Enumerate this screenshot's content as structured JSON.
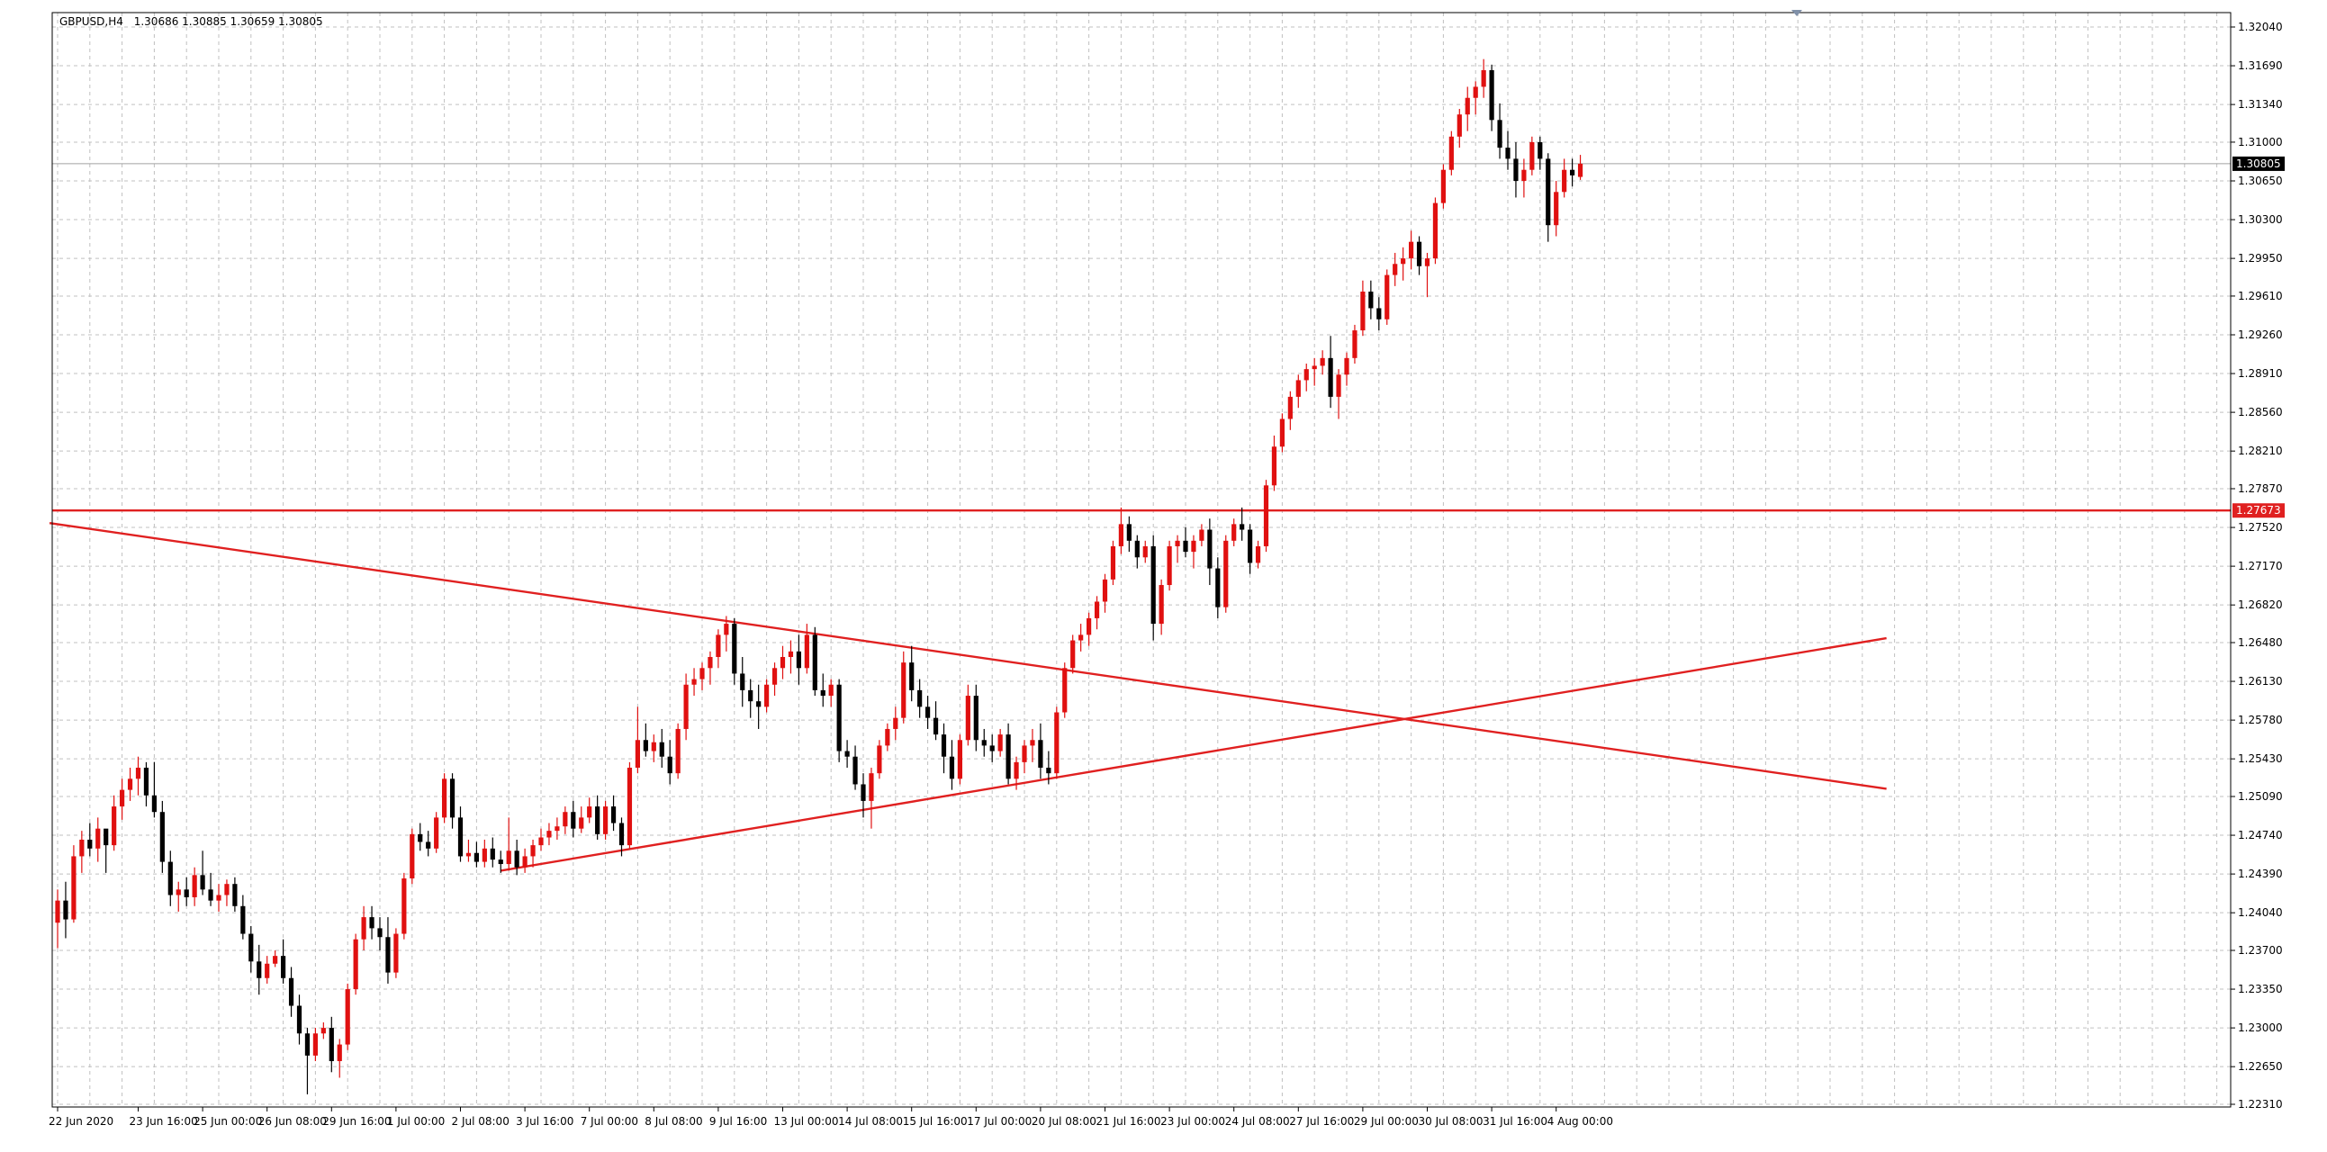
{
  "header": {
    "symbol_timeframe": "GBPUSD,H4",
    "ohlc": "1.30686 1.30885 1.30659 1.30805"
  },
  "chart_data": {
    "type": "candlestick",
    "title": "GBPUSD,H4 1.30686 1.30885 1.30659 1.30805",
    "ylim": [
      1.2231,
      1.3204
    ],
    "y_ticks": [
      "1.32040",
      "1.31690",
      "1.31340",
      "1.31000",
      "1.30650",
      "1.30300",
      "1.29950",
      "1.29610",
      "1.29260",
      "1.28910",
      "1.28560",
      "1.28210",
      "1.27870",
      "1.27520",
      "1.27170",
      "1.26820",
      "1.26480",
      "1.26130",
      "1.25780",
      "1.25430",
      "1.25090",
      "1.24740",
      "1.24390",
      "1.24040",
      "1.23700",
      "1.23350",
      "1.23000",
      "1.22650",
      "1.22310"
    ],
    "x_ticks": [
      {
        "label": "22 Jun 2020",
        "bar": 0
      },
      {
        "label": "23 Jun 16:00",
        "bar": 10
      },
      {
        "label": "25 Jun 00:00",
        "bar": 18
      },
      {
        "label": "26 Jun 08:00",
        "bar": 26
      },
      {
        "label": "29 Jun 16:00",
        "bar": 34
      },
      {
        "label": "1 Jul 00:00",
        "bar": 42
      },
      {
        "label": "2 Jul 08:00",
        "bar": 50
      },
      {
        "label": "3 Jul 16:00",
        "bar": 58
      },
      {
        "label": "7 Jul 00:00",
        "bar": 66
      },
      {
        "label": "8 Jul 08:00",
        "bar": 74
      },
      {
        "label": "9 Jul 16:00",
        "bar": 82
      },
      {
        "label": "13 Jul 00:00",
        "bar": 90
      },
      {
        "label": "14 Jul 08:00",
        "bar": 98
      },
      {
        "label": "15 Jul 16:00",
        "bar": 106
      },
      {
        "label": "17 Jul 00:00",
        "bar": 114
      },
      {
        "label": "20 Jul 08:00",
        "bar": 122
      },
      {
        "label": "21 Jul 16:00",
        "bar": 130
      },
      {
        "label": "23 Jul 00:00",
        "bar": 138
      },
      {
        "label": "24 Jul 08:00",
        "bar": 146
      },
      {
        "label": "27 Jul 16:00",
        "bar": 154
      },
      {
        "label": "29 Jul 00:00",
        "bar": 162
      },
      {
        "label": "30 Jul 08:00",
        "bar": 170
      },
      {
        "label": "31 Jul 16:00",
        "bar": 178
      },
      {
        "label": "4 Aug 00:00",
        "bar": 186
      }
    ],
    "bar_count_visible": 228,
    "candles": [
      [
        1.2395,
        1.2425,
        1.2372,
        1.2415
      ],
      [
        1.2415,
        1.2432,
        1.2381,
        1.2398
      ],
      [
        1.2398,
        1.2465,
        1.2395,
        1.2455
      ],
      [
        1.2455,
        1.2478,
        1.244,
        1.247
      ],
      [
        1.247,
        1.2485,
        1.2455,
        1.2462
      ],
      [
        1.2462,
        1.249,
        1.245,
        1.248
      ],
      [
        1.248,
        1.2475,
        1.244,
        1.2465
      ],
      [
        1.2465,
        1.251,
        1.246,
        1.25
      ],
      [
        1.25,
        1.2525,
        1.2488,
        1.2515
      ],
      [
        1.2515,
        1.2535,
        1.2505,
        1.2525
      ],
      [
        1.2525,
        1.2545,
        1.251,
        1.2535
      ],
      [
        1.2535,
        1.254,
        1.25,
        1.251
      ],
      [
        1.251,
        1.254,
        1.249,
        1.2495
      ],
      [
        1.2495,
        1.2505,
        1.244,
        1.245
      ],
      [
        1.245,
        1.246,
        1.241,
        1.242
      ],
      [
        1.242,
        1.2432,
        1.2405,
        1.2425
      ],
      [
        1.2425,
        1.2436,
        1.241,
        1.2418
      ],
      [
        1.2418,
        1.2445,
        1.241,
        1.2438
      ],
      [
        1.2438,
        1.246,
        1.242,
        1.2425
      ],
      [
        1.2425,
        1.244,
        1.241,
        1.2415
      ],
      [
        1.2415,
        1.243,
        1.2405,
        1.242
      ],
      [
        1.242,
        1.2434,
        1.241,
        1.243
      ],
      [
        1.243,
        1.2436,
        1.2405,
        1.241
      ],
      [
        1.241,
        1.242,
        1.238,
        1.2385
      ],
      [
        1.2385,
        1.2392,
        1.235,
        1.236
      ],
      [
        1.236,
        1.2375,
        1.233,
        1.2345
      ],
      [
        1.2345,
        1.2365,
        1.234,
        1.2358
      ],
      [
        1.2358,
        1.237,
        1.2355,
        1.2365
      ],
      [
        1.2365,
        1.238,
        1.234,
        1.2345
      ],
      [
        1.2345,
        1.2355,
        1.231,
        1.232
      ],
      [
        1.232,
        1.233,
        1.2285,
        1.2295
      ],
      [
        1.2295,
        1.23,
        1.224,
        1.2275
      ],
      [
        1.2275,
        1.23,
        1.227,
        1.2295
      ],
      [
        1.2295,
        1.2305,
        1.229,
        1.23
      ],
      [
        1.23,
        1.231,
        1.226,
        1.227
      ],
      [
        1.227,
        1.229,
        1.2255,
        1.2285
      ],
      [
        1.2285,
        1.234,
        1.228,
        1.2335
      ],
      [
        1.2335,
        1.2385,
        1.233,
        1.238
      ],
      [
        1.238,
        1.241,
        1.237,
        1.24
      ],
      [
        1.24,
        1.241,
        1.238,
        1.239
      ],
      [
        1.239,
        1.24,
        1.237,
        1.2382
      ],
      [
        1.2382,
        1.24,
        1.234,
        1.235
      ],
      [
        1.235,
        1.239,
        1.2345,
        1.2385
      ],
      [
        1.2385,
        1.244,
        1.238,
        1.2435
      ],
      [
        1.2435,
        1.248,
        1.243,
        1.2475
      ],
      [
        1.2475,
        1.2485,
        1.246,
        1.2468
      ],
      [
        1.2468,
        1.2478,
        1.2455,
        1.2462
      ],
      [
        1.2462,
        1.2495,
        1.2458,
        1.249
      ],
      [
        1.249,
        1.253,
        1.2485,
        1.2525
      ],
      [
        1.2525,
        1.253,
        1.248,
        1.249
      ],
      [
        1.249,
        1.25,
        1.245,
        1.2455
      ],
      [
        1.2455,
        1.247,
        1.245,
        1.2458
      ],
      [
        1.2458,
        1.2468,
        1.2445,
        1.245
      ],
      [
        1.245,
        1.247,
        1.2445,
        1.2462
      ],
      [
        1.2462,
        1.2472,
        1.2445,
        1.2452
      ],
      [
        1.2452,
        1.246,
        1.244,
        1.2448
      ],
      [
        1.2448,
        1.249,
        1.2442,
        1.246
      ],
      [
        1.246,
        1.247,
        1.2438,
        1.2445
      ],
      [
        1.2445,
        1.2462,
        1.244,
        1.2455
      ],
      [
        1.2455,
        1.247,
        1.2445,
        1.2465
      ],
      [
        1.2465,
        1.248,
        1.246,
        1.2472
      ],
      [
        1.2472,
        1.2485,
        1.2465,
        1.2478
      ],
      [
        1.2478,
        1.249,
        1.247,
        1.2482
      ],
      [
        1.2482,
        1.25,
        1.2475,
        1.2495
      ],
      [
        1.2495,
        1.2505,
        1.2472,
        1.248
      ],
      [
        1.248,
        1.25,
        1.2476,
        1.249
      ],
      [
        1.249,
        1.2508,
        1.2485,
        1.25
      ],
      [
        1.25,
        1.251,
        1.247,
        1.2475
      ],
      [
        1.2475,
        1.2505,
        1.247,
        1.25
      ],
      [
        1.25,
        1.251,
        1.2478,
        1.2485
      ],
      [
        1.2485,
        1.249,
        1.2455,
        1.2465
      ],
      [
        1.2465,
        1.254,
        1.2462,
        1.2535
      ],
      [
        1.2535,
        1.259,
        1.253,
        1.256
      ],
      [
        1.256,
        1.2575,
        1.2545,
        1.255
      ],
      [
        1.255,
        1.2565,
        1.254,
        1.2558
      ],
      [
        1.2558,
        1.257,
        1.2535,
        1.2545
      ],
      [
        1.2545,
        1.256,
        1.252,
        1.253
      ],
      [
        1.253,
        1.2575,
        1.2525,
        1.257
      ],
      [
        1.257,
        1.262,
        1.256,
        1.261
      ],
      [
        1.261,
        1.2625,
        1.26,
        1.2615
      ],
      [
        1.2615,
        1.263,
        1.2605,
        1.2625
      ],
      [
        1.2625,
        1.264,
        1.261,
        1.2635
      ],
      [
        1.2635,
        1.266,
        1.2625,
        1.2655
      ],
      [
        1.2655,
        1.2672,
        1.264,
        1.2665
      ],
      [
        1.2665,
        1.267,
        1.261,
        1.262
      ],
      [
        1.262,
        1.2635,
        1.259,
        1.2605
      ],
      [
        1.2605,
        1.2615,
        1.258,
        1.2595
      ],
      [
        1.2595,
        1.261,
        1.257,
        1.259
      ],
      [
        1.259,
        1.2615,
        1.2585,
        1.261
      ],
      [
        1.261,
        1.263,
        1.26,
        1.2625
      ],
      [
        1.2625,
        1.2645,
        1.2615,
        1.2635
      ],
      [
        1.2635,
        1.265,
        1.262,
        1.264
      ],
      [
        1.264,
        1.2655,
        1.261,
        1.2625
      ],
      [
        1.2625,
        1.2665,
        1.262,
        1.2655
      ],
      [
        1.2655,
        1.2662,
        1.26,
        1.2605
      ],
      [
        1.2605,
        1.262,
        1.259,
        1.26
      ],
      [
        1.26,
        1.2615,
        1.259,
        1.261
      ],
      [
        1.261,
        1.2615,
        1.254,
        1.255
      ],
      [
        1.255,
        1.256,
        1.2535,
        1.2545
      ],
      [
        1.2545,
        1.2555,
        1.2515,
        1.252
      ],
      [
        1.252,
        1.253,
        1.249,
        1.2505
      ],
      [
        1.2505,
        1.2535,
        1.248,
        1.253
      ],
      [
        1.253,
        1.256,
        1.2525,
        1.2555
      ],
      [
        1.2555,
        1.2575,
        1.255,
        1.257
      ],
      [
        1.257,
        1.259,
        1.256,
        1.258
      ],
      [
        1.258,
        1.264,
        1.2575,
        1.263
      ],
      [
        1.263,
        1.2645,
        1.2595,
        1.2605
      ],
      [
        1.2605,
        1.2615,
        1.258,
        1.259
      ],
      [
        1.259,
        1.26,
        1.257,
        1.258
      ],
      [
        1.258,
        1.2595,
        1.256,
        1.2565
      ],
      [
        1.2565,
        1.2575,
        1.253,
        1.2545
      ],
      [
        1.2545,
        1.256,
        1.2515,
        1.2525
      ],
      [
        1.2525,
        1.2565,
        1.252,
        1.256
      ],
      [
        1.256,
        1.261,
        1.2555,
        1.26
      ],
      [
        1.26,
        1.261,
        1.255,
        1.256
      ],
      [
        1.256,
        1.257,
        1.2545,
        1.2555
      ],
      [
        1.2555,
        1.2565,
        1.254,
        1.255
      ],
      [
        1.255,
        1.257,
        1.2545,
        1.2565
      ],
      [
        1.2565,
        1.2575,
        1.252,
        1.2525
      ],
      [
        1.2525,
        1.2545,
        1.2515,
        1.254
      ],
      [
        1.254,
        1.256,
        1.253,
        1.2555
      ],
      [
        1.2555,
        1.257,
        1.254,
        1.256
      ],
      [
        1.256,
        1.2575,
        1.2525,
        1.2535
      ],
      [
        1.2535,
        1.255,
        1.252,
        1.253
      ],
      [
        1.253,
        1.259,
        1.2525,
        1.2585
      ],
      [
        1.2585,
        1.263,
        1.258,
        1.2625
      ],
      [
        1.2625,
        1.2655,
        1.262,
        1.265
      ],
      [
        1.265,
        1.2665,
        1.264,
        1.2655
      ],
      [
        1.2655,
        1.2675,
        1.2645,
        1.267
      ],
      [
        1.267,
        1.269,
        1.266,
        1.2685
      ],
      [
        1.2685,
        1.271,
        1.2675,
        1.2705
      ],
      [
        1.2705,
        1.274,
        1.27,
        1.2735
      ],
      [
        1.2735,
        1.277,
        1.2728,
        1.2755
      ],
      [
        1.2755,
        1.2762,
        1.273,
        1.274
      ],
      [
        1.274,
        1.2745,
        1.2715,
        1.2725
      ],
      [
        1.2725,
        1.274,
        1.272,
        1.2735
      ],
      [
        1.2735,
        1.2745,
        1.265,
        1.2665
      ],
      [
        1.2665,
        1.2705,
        1.2655,
        1.27
      ],
      [
        1.27,
        1.274,
        1.2695,
        1.2735
      ],
      [
        1.2735,
        1.2745,
        1.272,
        1.274
      ],
      [
        1.274,
        1.2752,
        1.2725,
        1.273
      ],
      [
        1.273,
        1.2745,
        1.2715,
        1.274
      ],
      [
        1.274,
        1.2755,
        1.2735,
        1.275
      ],
      [
        1.275,
        1.276,
        1.27,
        1.2715
      ],
      [
        1.2715,
        1.2725,
        1.267,
        1.268
      ],
      [
        1.268,
        1.2745,
        1.2675,
        1.274
      ],
      [
        1.274,
        1.276,
        1.2735,
        1.2755
      ],
      [
        1.2755,
        1.277,
        1.274,
        1.275
      ],
      [
        1.275,
        1.2755,
        1.271,
        1.272
      ],
      [
        1.272,
        1.274,
        1.2715,
        1.2735
      ],
      [
        1.2735,
        1.2795,
        1.273,
        1.279
      ],
      [
        1.279,
        1.2835,
        1.2785,
        1.2825
      ],
      [
        1.2825,
        1.2855,
        1.282,
        1.285
      ],
      [
        1.285,
        1.2875,
        1.284,
        1.287
      ],
      [
        1.287,
        1.289,
        1.286,
        1.2885
      ],
      [
        1.2885,
        1.29,
        1.2875,
        1.2895
      ],
      [
        1.2895,
        1.2905,
        1.288,
        1.2898
      ],
      [
        1.2898,
        1.2912,
        1.289,
        1.2905
      ],
      [
        1.2905,
        1.2925,
        1.286,
        1.287
      ],
      [
        1.287,
        1.2895,
        1.285,
        1.289
      ],
      [
        1.289,
        1.291,
        1.288,
        1.2905
      ],
      [
        1.2905,
        1.2935,
        1.29,
        1.293
      ],
      [
        1.293,
        1.2975,
        1.2925,
        1.2965
      ],
      [
        1.2965,
        1.2975,
        1.294,
        1.295
      ],
      [
        1.295,
        1.296,
        1.293,
        1.294
      ],
      [
        1.294,
        1.2985,
        1.2935,
        1.298
      ],
      [
        1.298,
        1.3,
        1.297,
        1.299
      ],
      [
        1.299,
        1.3005,
        1.2975,
        1.2995
      ],
      [
        1.2995,
        1.302,
        1.2985,
        1.301
      ],
      [
        1.301,
        1.3015,
        1.298,
        1.2988
      ],
      [
        1.2988,
        1.3,
        1.296,
        1.2995
      ],
      [
        1.2995,
        1.305,
        1.299,
        1.3045
      ],
      [
        1.3045,
        1.308,
        1.304,
        1.3075
      ],
      [
        1.3075,
        1.311,
        1.307,
        1.3105
      ],
      [
        1.3105,
        1.313,
        1.3095,
        1.3125
      ],
      [
        1.3125,
        1.315,
        1.311,
        1.314
      ],
      [
        1.314,
        1.3155,
        1.3125,
        1.315
      ],
      [
        1.315,
        1.3175,
        1.314,
        1.3165
      ],
      [
        1.3165,
        1.317,
        1.311,
        1.312
      ],
      [
        1.312,
        1.3135,
        1.3085,
        1.3095
      ],
      [
        1.3095,
        1.311,
        1.3075,
        1.3085
      ],
      [
        1.3085,
        1.31,
        1.305,
        1.3065
      ],
      [
        1.3065,
        1.3085,
        1.305,
        1.3075
      ],
      [
        1.3075,
        1.3105,
        1.307,
        1.31
      ],
      [
        1.31,
        1.3105,
        1.3075,
        1.3085
      ],
      [
        1.3085,
        1.309,
        1.301,
        1.3025
      ],
      [
        1.3025,
        1.3065,
        1.3015,
        1.3055
      ],
      [
        1.3055,
        1.3085,
        1.305,
        1.3075
      ],
      [
        1.3075,
        1.3085,
        1.306,
        1.307
      ],
      [
        1.30686,
        1.30885,
        1.30659,
        1.30805
      ]
    ],
    "horizontal_line": {
      "price": 1.27673,
      "label": "1.27673"
    },
    "current_price": {
      "price": 1.30805,
      "label": "1.30805"
    },
    "trendlines": [
      {
        "from_bar": -1,
        "from_price": 1.2756,
        "to_bar": 227,
        "to_price": 1.2516
      },
      {
        "from_bar": 55,
        "from_price": 1.2442,
        "to_bar": 227,
        "to_price": 1.2652
      }
    ],
    "colors": {
      "bull": "#e01010",
      "bear": "#000000",
      "lines": "#e02020",
      "grid": "#c0c0c0",
      "axis": "#000000",
      "price_tag_bg": "#000000",
      "level_tag_bg": "#e02020"
    },
    "grid": true
  }
}
